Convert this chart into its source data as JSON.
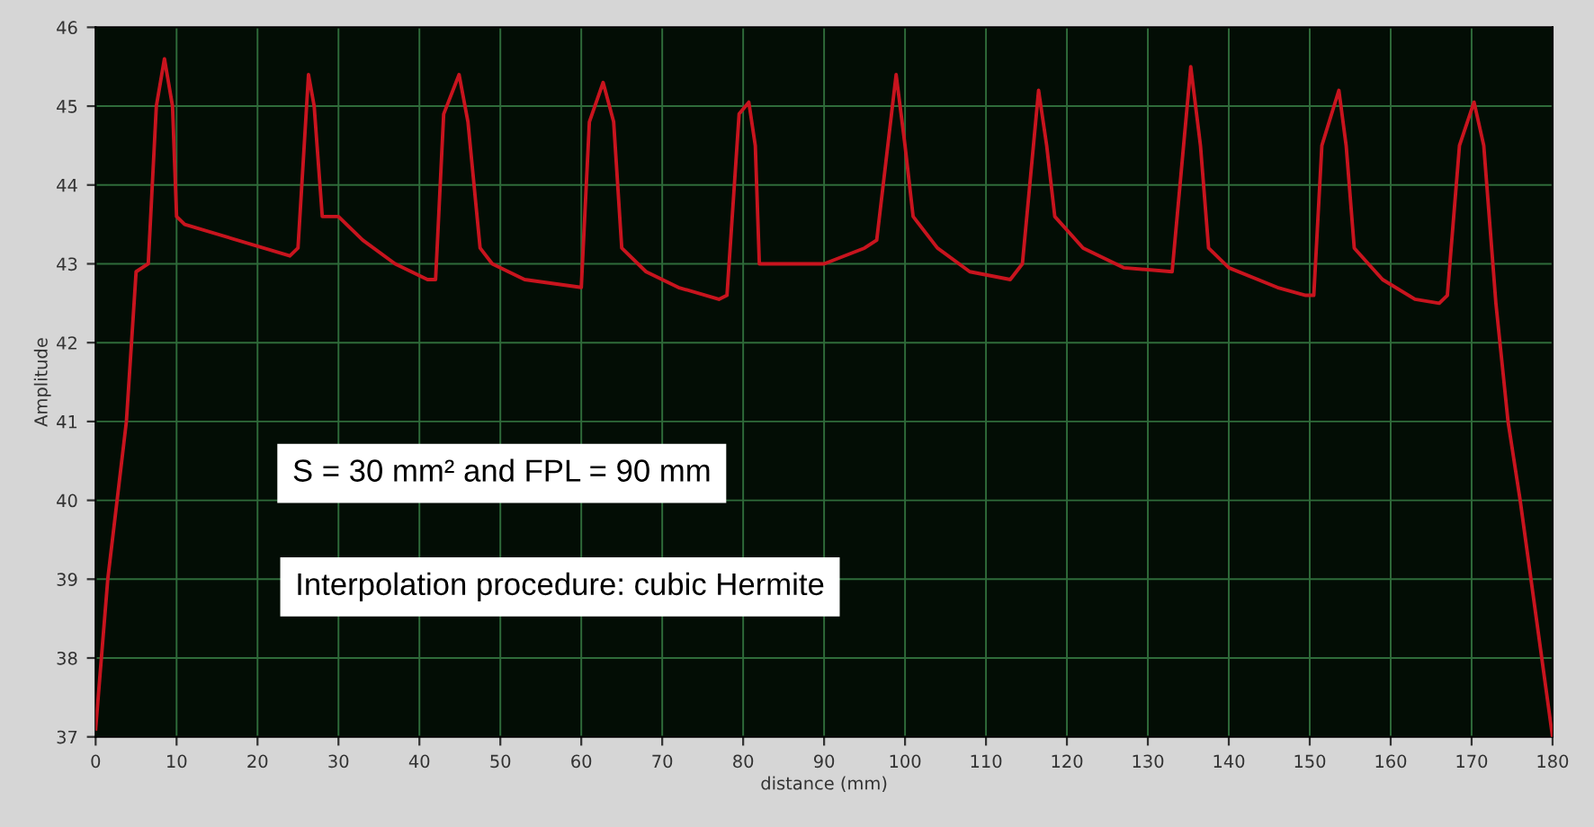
{
  "chart_data": {
    "type": "line",
    "xlabel": "distance (mm)",
    "ylabel": "Amplitude",
    "xlim": [
      0,
      180
    ],
    "ylim": [
      37,
      46
    ],
    "xticks": [
      0,
      10,
      20,
      30,
      40,
      50,
      60,
      70,
      80,
      90,
      100,
      110,
      120,
      130,
      140,
      150,
      160,
      170,
      180
    ],
    "yticks": [
      37,
      38,
      39,
      40,
      41,
      42,
      43,
      44,
      45,
      46
    ],
    "grid": true,
    "marker": "none",
    "line_style": "solid",
    "annotations": [
      "S = 30 mm² and FPL = 90 mm",
      "Interpolation procedure: cubic Hermite"
    ],
    "series": [
      {
        "color": "#c8141e",
        "x": [
          0,
          1.5,
          3.8,
          5,
          6.5,
          7.5,
          8.5,
          9.5,
          10,
          11,
          24,
          25,
          26.3,
          27,
          28,
          30,
          33,
          37,
          39,
          41,
          42,
          43,
          44.9,
          46,
          47.5,
          49,
          53,
          60,
          61,
          62.7,
          64,
          65,
          68,
          72,
          77,
          78,
          79.5,
          80.7,
          81.5,
          82,
          90,
          95,
          96.5,
          98.9,
          100,
          101,
          104,
          108,
          113,
          114.5,
          116.5,
          117.5,
          118.5,
          122,
          127,
          133,
          135.3,
          136.5,
          137.5,
          140,
          146,
          149.5,
          150.5,
          151.5,
          153.6,
          154.5,
          155.5,
          159,
          163,
          166,
          167,
          168.5,
          170.3,
          171.5,
          173,
          174.5,
          176,
          180
        ],
        "values": [
          37.1,
          39,
          41,
          42.9,
          43,
          45,
          45.6,
          45,
          43.6,
          43.5,
          43.1,
          43.2,
          45.4,
          45,
          43.6,
          43.6,
          43.3,
          43,
          42.9,
          42.8,
          42.8,
          44.9,
          45.4,
          44.8,
          43.2,
          43,
          42.8,
          42.7,
          44.8,
          45.3,
          44.8,
          43.2,
          42.9,
          42.7,
          42.55,
          42.6,
          44.9,
          45.05,
          44.5,
          43,
          43,
          43.2,
          43.3,
          45.4,
          44.5,
          43.6,
          43.2,
          42.9,
          42.8,
          43,
          45.2,
          44.5,
          43.6,
          43.2,
          42.95,
          42.9,
          45.5,
          44.5,
          43.2,
          42.95,
          42.7,
          42.6,
          42.6,
          44.5,
          45.2,
          44.5,
          43.2,
          42.8,
          42.55,
          42.5,
          42.6,
          44.5,
          45.05,
          44.5,
          42.5,
          41,
          40,
          37
        ]
      }
    ]
  }
}
